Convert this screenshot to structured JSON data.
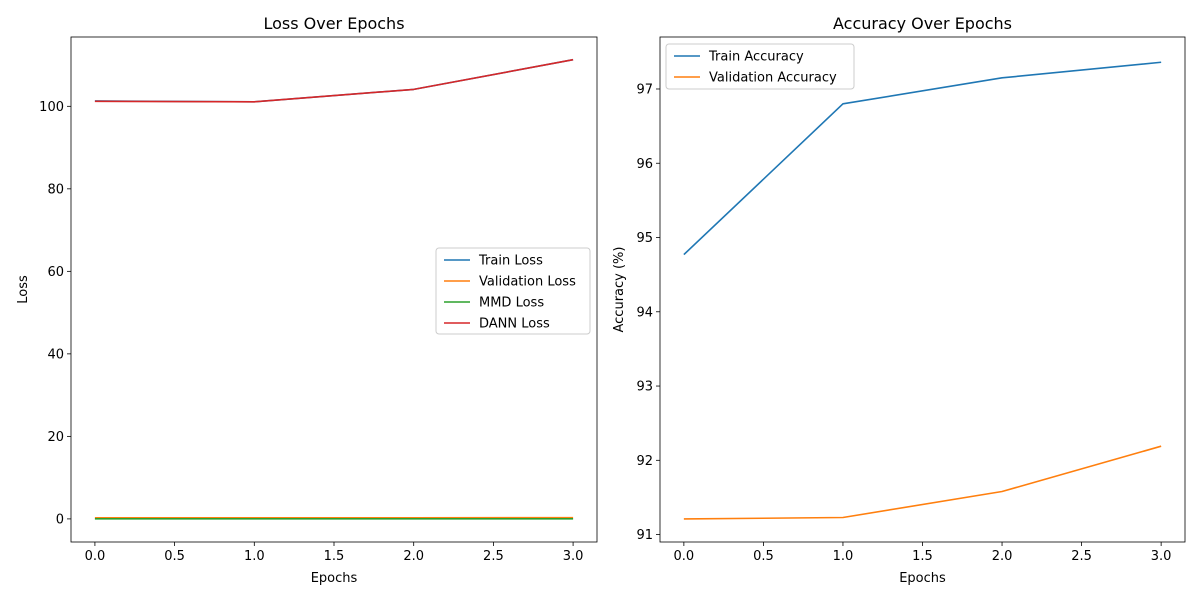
{
  "chart_data": [
    {
      "type": "line",
      "title": "Loss Over Epochs",
      "xlabel": "Epochs",
      "ylabel": "Loss",
      "xlim": [
        -0.15,
        3.15
      ],
      "ylim": [
        -5.6,
        116.8
      ],
      "xticks": [
        0.0,
        0.5,
        1.0,
        1.5,
        2.0,
        2.5,
        3.0
      ],
      "xtick_labels": [
        "0.0",
        "0.5",
        "1.0",
        "1.5",
        "2.0",
        "2.5",
        "3.0"
      ],
      "yticks": [
        0,
        20,
        40,
        60,
        80,
        100
      ],
      "ytick_labels": [
        "0",
        "20",
        "40",
        "60",
        "80",
        "100"
      ],
      "legend_position": "center-right",
      "grid": false,
      "x": [
        0,
        1,
        2,
        3
      ],
      "series": [
        {
          "name": "Train Loss",
          "color": "#1f77b4",
          "values": [
            101.3,
            101.1,
            104.1,
            111.3
          ]
        },
        {
          "name": "Validation Loss",
          "color": "#ff7f0e",
          "values": [
            0.28,
            0.28,
            0.28,
            0.3
          ]
        },
        {
          "name": "MMD Loss",
          "color": "#2ca02c",
          "values": [
            0.01,
            0.01,
            0.01,
            0.01
          ]
        },
        {
          "name": "DANN Loss",
          "color": "#d62728",
          "values": [
            101.2,
            101.1,
            104.1,
            111.3
          ]
        }
      ]
    },
    {
      "type": "line",
      "title": "Accuracy Over Epochs",
      "xlabel": "Epochs",
      "ylabel": "Accuracy (%)",
      "xlim": [
        -0.15,
        3.15
      ],
      "ylim": [
        90.9,
        97.7
      ],
      "xticks": [
        0.0,
        0.5,
        1.0,
        1.5,
        2.0,
        2.5,
        3.0
      ],
      "xtick_labels": [
        "0.0",
        "0.5",
        "1.0",
        "1.5",
        "2.0",
        "2.5",
        "3.0"
      ],
      "yticks": [
        91,
        92,
        93,
        94,
        95,
        96,
        97
      ],
      "ytick_labels": [
        "91",
        "92",
        "93",
        "94",
        "95",
        "96",
        "97"
      ],
      "legend_position": "top-left",
      "grid": false,
      "x": [
        0,
        1,
        2,
        3
      ],
      "series": [
        {
          "name": "Train Accuracy",
          "color": "#1f77b4",
          "values": [
            94.77,
            96.8,
            97.15,
            97.36
          ]
        },
        {
          "name": "Validation Accuracy",
          "color": "#ff7f0e",
          "values": [
            91.21,
            91.23,
            91.58,
            92.19
          ]
        }
      ]
    }
  ]
}
